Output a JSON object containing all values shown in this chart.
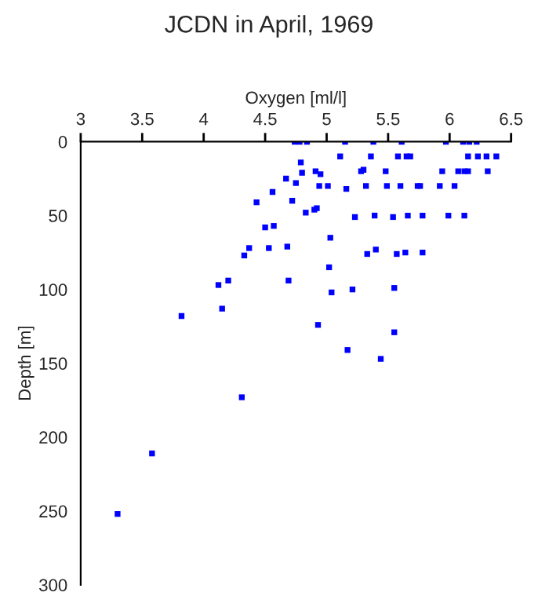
{
  "chart_data": {
    "type": "scatter",
    "title": "JCDN in April, 1969",
    "xlabel": "Oxygen [ml/l]",
    "ylabel": "Depth [m]",
    "xlim": [
      3,
      6.5
    ],
    "xticks": [
      3,
      3.5,
      4,
      4.5,
      5,
      5.5,
      6,
      6.5
    ],
    "ylim": [
      300,
      0
    ],
    "yticks": [
      0,
      50,
      100,
      150,
      200,
      250,
      300
    ],
    "grid": false,
    "marker": "square",
    "series": [
      {
        "color": "#0000ff",
        "x": [
          4.74,
          4.78,
          4.84,
          5.15,
          5.38,
          5.61,
          5.97,
          6.11,
          6.16,
          6.22,
          4.79,
          5.11,
          5.36,
          5.58,
          5.65,
          5.68,
          6.15,
          6.23,
          6.3,
          6.38,
          4.8,
          4.91,
          4.95,
          5.28,
          5.3,
          5.48,
          5.94,
          6.07,
          6.12,
          6.15,
          6.31,
          4.75,
          4.94,
          5.01,
          5.16,
          5.32,
          5.49,
          5.6,
          5.74,
          5.76,
          5.92,
          6.04,
          4.83,
          4.9,
          4.92,
          5.23,
          5.39,
          5.54,
          5.66,
          5.78,
          5.99,
          6.12,
          5.03,
          5.4,
          4.67,
          4.56,
          4.43,
          4.72,
          4.5,
          4.57,
          4.37,
          4.33,
          4.53,
          4.68,
          4.2,
          4.69,
          5.33,
          5.57,
          5.64,
          5.78,
          5.02,
          5.04,
          5.21,
          5.55,
          4.93,
          5.55,
          5.17,
          5.44,
          4.12,
          3.82,
          4.15,
          4.31,
          3.58,
          3.3
        ],
        "values": [
          0,
          0,
          0,
          0,
          0,
          0,
          0,
          0,
          0,
          0,
          14,
          10,
          10,
          10,
          10,
          10,
          10,
          10,
          10,
          10,
          21,
          20,
          22,
          20,
          19,
          20,
          20,
          20,
          20,
          20,
          20,
          28,
          30,
          30,
          32,
          30,
          30,
          30,
          30,
          30,
          30,
          30,
          48,
          46,
          45,
          51,
          50,
          51,
          50,
          50,
          50,
          50,
          65,
          73,
          25,
          34,
          41,
          40,
          58,
          57,
          72,
          77,
          72,
          71,
          94,
          94,
          76,
          76,
          75,
          75,
          85,
          102,
          100,
          99,
          124,
          129,
          141,
          147,
          97,
          118,
          113,
          173,
          211,
          252
        ]
      }
    ]
  }
}
